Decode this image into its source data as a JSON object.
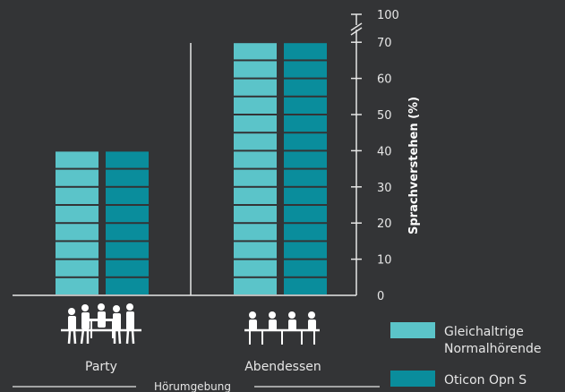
{
  "chart_data": {
    "type": "bar",
    "categories": [
      "Party",
      "Abendessen"
    ],
    "series": [
      {
        "name": "Gleichaltrige Normalhörende",
        "values": [
          40,
          70
        ],
        "color": "#5bc4c9"
      },
      {
        "name": "Oticon Opn S",
        "values": [
          40,
          70
        ],
        "color": "#0a8d9c"
      }
    ],
    "ylabel": "Sprachverstehen (%)",
    "xlabel": "Hörumgebung",
    "y_ticks": [
      0,
      10,
      20,
      30,
      40,
      50,
      60,
      70,
      100
    ],
    "ylim": [
      0,
      100
    ],
    "axis_break": [
      70,
      100
    ],
    "segment_step": 5,
    "legend_position": "bottom-right",
    "legend_lines": [
      [
        "Gleichaltrige",
        "Normalhörende"
      ],
      [
        "Oticon Opn S"
      ]
    ],
    "icons": [
      "party-people-icon",
      "dinner-people-icon"
    ]
  }
}
